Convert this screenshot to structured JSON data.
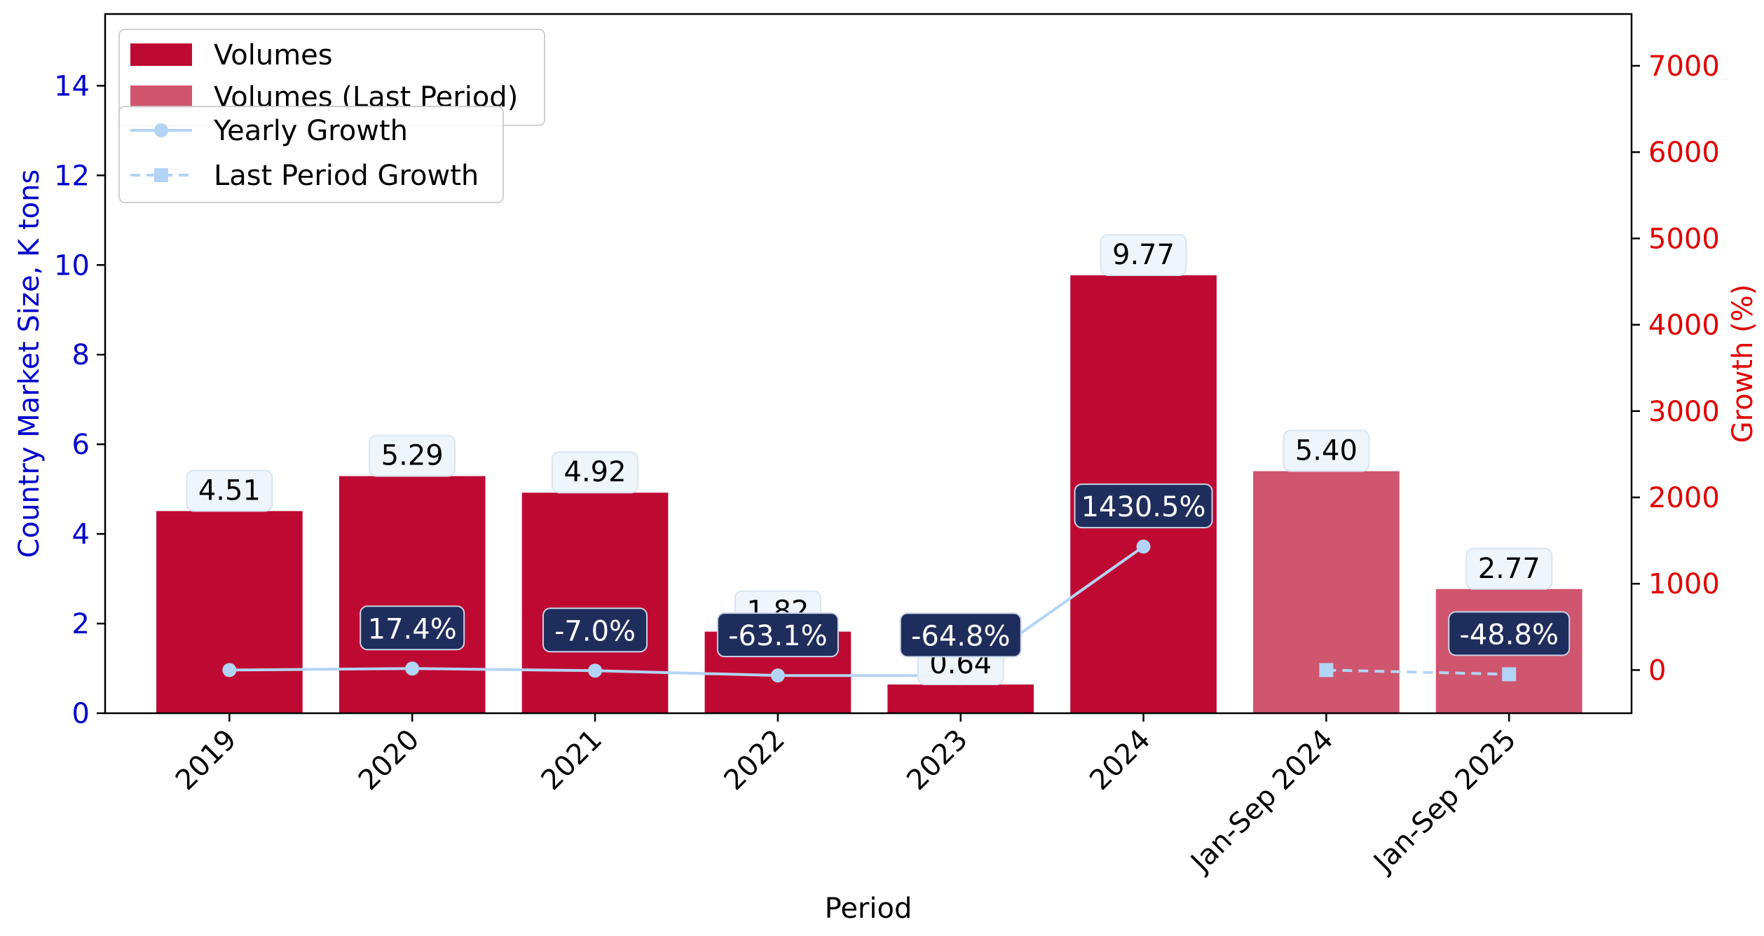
{
  "chart_data": {
    "type": "bar",
    "categories": [
      "2019",
      "2020",
      "2021",
      "2022",
      "2023",
      "2024",
      "Jan-Sep 2024",
      "Jan-Sep 2025"
    ],
    "xlabel": "Period",
    "ylabel": "Country Market Size, K tons",
    "y2label": "Growth (%)",
    "ylim": [
      0,
      15.6
    ],
    "y2lim": [
      -500,
      7600
    ],
    "yticks": [
      "0",
      "2",
      "4",
      "6",
      "8",
      "10",
      "12",
      "14"
    ],
    "y2ticks": [
      "0",
      "1000",
      "2000",
      "3000",
      "4000",
      "5000",
      "6000",
      "7000"
    ],
    "series": [
      {
        "name": "Volumes",
        "kind": "bar",
        "color": "#be0a32",
        "values": [
          4.51,
          5.29,
          4.92,
          1.82,
          0.64,
          9.77,
          null,
          null
        ],
        "labels": [
          "4.51",
          "5.29",
          "4.92",
          "1.82",
          "0.64",
          "9.77",
          "",
          ""
        ]
      },
      {
        "name": "Volumes (Last Period)",
        "kind": "bar",
        "color": "#d0556e",
        "values": [
          null,
          null,
          null,
          null,
          null,
          null,
          5.4,
          2.77
        ],
        "labels": [
          "",
          "",
          "",
          "",
          "",
          "",
          "5.40",
          "2.77"
        ]
      },
      {
        "name": "Yearly Growth",
        "kind": "line",
        "color": "#b3d4f5",
        "axis": "right",
        "values": [
          0,
          17.4,
          -7.0,
          -63.1,
          -64.8,
          1430.5,
          null,
          null
        ],
        "labels": [
          "",
          "17.4%",
          "-7.0%",
          "-63.1%",
          "-64.8%",
          "1430.5%",
          "",
          ""
        ]
      },
      {
        "name": "Last Period Growth",
        "kind": "line",
        "style": "dashed",
        "color": "#b3d4f5",
        "axis": "right",
        "values": [
          null,
          null,
          null,
          null,
          null,
          null,
          0,
          -48.8
        ],
        "labels": [
          "",
          "",
          "",
          "",
          "",
          "",
          "",
          "-48.8%"
        ]
      }
    ],
    "legend": [
      "top-left"
    ],
    "colors": {
      "left_axis": "#0000cc",
      "right_axis": "#e00000",
      "growth_box": "#1f2d5c",
      "volume_box": "#eef5fb"
    }
  }
}
